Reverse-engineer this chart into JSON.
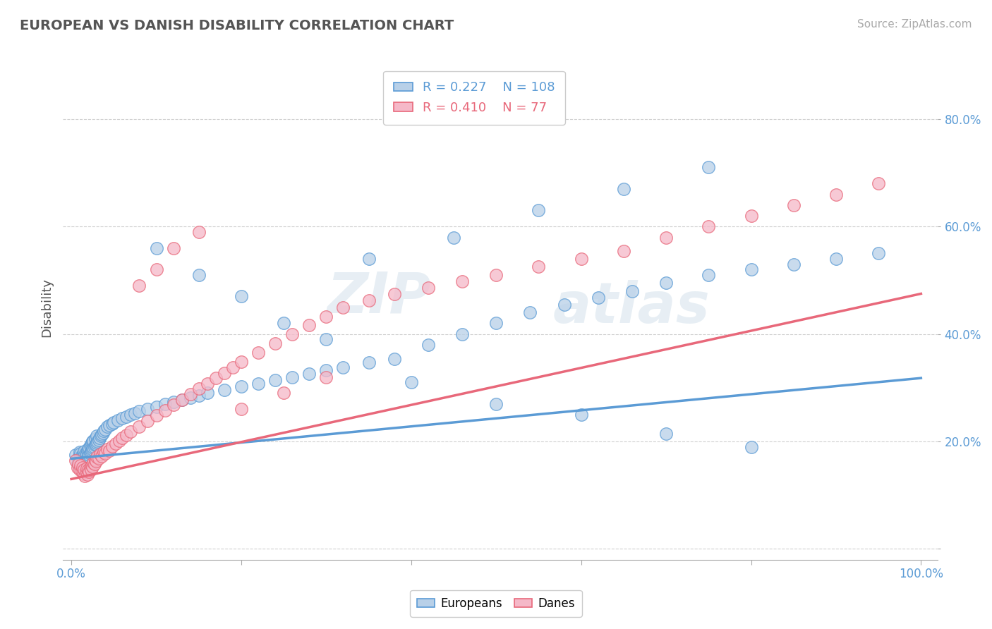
{
  "title": "EUROPEAN VS DANISH DISABILITY CORRELATION CHART",
  "source": "Source: ZipAtlas.com",
  "ylabel": "Disability",
  "xlim": [
    -0.01,
    1.02
  ],
  "ylim": [
    -0.02,
    0.92
  ],
  "xticks": [
    0.0,
    0.2,
    0.4,
    0.6,
    0.8,
    1.0
  ],
  "xtick_labels_ends": [
    "0.0%",
    "100.0%"
  ],
  "ytick_positions": [
    0.2,
    0.4,
    0.6,
    0.8
  ],
  "ytick_labels": [
    "20.0%",
    "40.0%",
    "60.0%",
    "80.0%"
  ],
  "blue_color": "#b8d0e8",
  "pink_color": "#f5b8c8",
  "blue_line_color": "#5b9bd5",
  "pink_line_color": "#e8687a",
  "blue_R": 0.227,
  "blue_N": 108,
  "pink_R": 0.41,
  "pink_N": 77,
  "watermark_zip": "ZIP",
  "watermark_atlas": "atlas",
  "blue_trend_x0": 0.0,
  "blue_trend_y0": 0.168,
  "blue_trend_x1": 1.0,
  "blue_trend_y1": 0.318,
  "pink_trend_x0": 0.0,
  "pink_trend_y0": 0.13,
  "pink_trend_x1": 1.0,
  "pink_trend_y1": 0.475,
  "blue_points_x": [
    0.005,
    0.007,
    0.008,
    0.009,
    0.01,
    0.01,
    0.011,
    0.011,
    0.012,
    0.012,
    0.013,
    0.013,
    0.014,
    0.014,
    0.015,
    0.015,
    0.016,
    0.016,
    0.017,
    0.017,
    0.018,
    0.018,
    0.019,
    0.019,
    0.02,
    0.02,
    0.021,
    0.021,
    0.022,
    0.022,
    0.023,
    0.023,
    0.024,
    0.024,
    0.025,
    0.025,
    0.026,
    0.026,
    0.027,
    0.028,
    0.028,
    0.029,
    0.03,
    0.03,
    0.031,
    0.032,
    0.033,
    0.035,
    0.036,
    0.037,
    0.038,
    0.04,
    0.042,
    0.045,
    0.048,
    0.05,
    0.055,
    0.06,
    0.065,
    0.07,
    0.075,
    0.08,
    0.09,
    0.1,
    0.11,
    0.12,
    0.13,
    0.14,
    0.15,
    0.16,
    0.18,
    0.2,
    0.22,
    0.24,
    0.26,
    0.28,
    0.3,
    0.32,
    0.35,
    0.38,
    0.42,
    0.46,
    0.5,
    0.54,
    0.58,
    0.62,
    0.66,
    0.7,
    0.75,
    0.8,
    0.85,
    0.9,
    0.95,
    0.1,
    0.15,
    0.2,
    0.25,
    0.3,
    0.4,
    0.5,
    0.6,
    0.7,
    0.8,
    0.35,
    0.45,
    0.55,
    0.65,
    0.75
  ],
  "blue_points_y": [
    0.175,
    0.16,
    0.17,
    0.155,
    0.168,
    0.18,
    0.165,
    0.178,
    0.162,
    0.174,
    0.158,
    0.172,
    0.163,
    0.177,
    0.167,
    0.182,
    0.16,
    0.175,
    0.165,
    0.179,
    0.162,
    0.176,
    0.169,
    0.183,
    0.172,
    0.186,
    0.175,
    0.188,
    0.178,
    0.192,
    0.18,
    0.195,
    0.183,
    0.197,
    0.186,
    0.2,
    0.188,
    0.202,
    0.19,
    0.193,
    0.205,
    0.195,
    0.197,
    0.21,
    0.2,
    0.203,
    0.206,
    0.21,
    0.213,
    0.216,
    0.22,
    0.223,
    0.227,
    0.23,
    0.233,
    0.236,
    0.24,
    0.243,
    0.246,
    0.25,
    0.253,
    0.256,
    0.26,
    0.265,
    0.27,
    0.274,
    0.278,
    0.282,
    0.286,
    0.29,
    0.296,
    0.302,
    0.308,
    0.314,
    0.32,
    0.326,
    0.332,
    0.338,
    0.347,
    0.353,
    0.38,
    0.4,
    0.42,
    0.44,
    0.455,
    0.468,
    0.48,
    0.495,
    0.51,
    0.52,
    0.53,
    0.54,
    0.55,
    0.56,
    0.51,
    0.47,
    0.42,
    0.39,
    0.31,
    0.27,
    0.25,
    0.215,
    0.19,
    0.54,
    0.58,
    0.63,
    0.67,
    0.71
  ],
  "pink_points_x": [
    0.005,
    0.007,
    0.008,
    0.01,
    0.011,
    0.012,
    0.013,
    0.014,
    0.015,
    0.016,
    0.017,
    0.018,
    0.019,
    0.02,
    0.021,
    0.022,
    0.023,
    0.024,
    0.025,
    0.026,
    0.027,
    0.028,
    0.029,
    0.03,
    0.032,
    0.034,
    0.036,
    0.038,
    0.04,
    0.042,
    0.045,
    0.048,
    0.052,
    0.056,
    0.06,
    0.065,
    0.07,
    0.08,
    0.09,
    0.1,
    0.11,
    0.12,
    0.13,
    0.14,
    0.15,
    0.16,
    0.17,
    0.18,
    0.19,
    0.2,
    0.22,
    0.24,
    0.26,
    0.28,
    0.3,
    0.32,
    0.35,
    0.38,
    0.42,
    0.46,
    0.5,
    0.55,
    0.6,
    0.65,
    0.7,
    0.75,
    0.8,
    0.85,
    0.9,
    0.95,
    0.08,
    0.1,
    0.12,
    0.15,
    0.2,
    0.25,
    0.3
  ],
  "pink_points_y": [
    0.165,
    0.152,
    0.158,
    0.148,
    0.155,
    0.145,
    0.152,
    0.14,
    0.148,
    0.136,
    0.143,
    0.15,
    0.139,
    0.147,
    0.144,
    0.152,
    0.148,
    0.156,
    0.153,
    0.161,
    0.158,
    0.166,
    0.163,
    0.171,
    0.168,
    0.176,
    0.173,
    0.181,
    0.178,
    0.186,
    0.183,
    0.191,
    0.196,
    0.201,
    0.206,
    0.212,
    0.218,
    0.228,
    0.238,
    0.248,
    0.258,
    0.268,
    0.278,
    0.288,
    0.298,
    0.308,
    0.318,
    0.328,
    0.338,
    0.348,
    0.365,
    0.382,
    0.399,
    0.416,
    0.433,
    0.45,
    0.462,
    0.474,
    0.486,
    0.498,
    0.51,
    0.525,
    0.54,
    0.555,
    0.58,
    0.6,
    0.62,
    0.64,
    0.66,
    0.68,
    0.49,
    0.52,
    0.56,
    0.59,
    0.26,
    0.29,
    0.32
  ]
}
